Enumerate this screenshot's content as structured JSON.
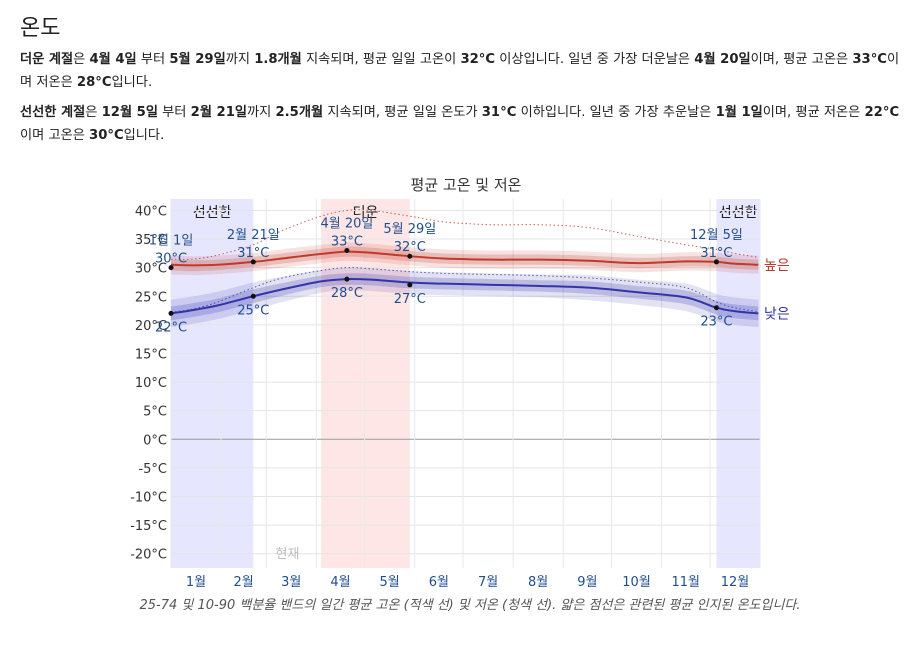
{
  "section": {
    "title": "온도",
    "hot_paragraph": {
      "season_label": "더운 계절",
      "t1": "은 ",
      "start": "4월 4일",
      "t2": " 부터 ",
      "end": "5월 29일",
      "t3": "까지 ",
      "duration": "1.8개월",
      "t4": " 지속되며, 평균 일일 고온이 ",
      "threshold": "32°C",
      "t5": " 이상입니다. 일년 중 가장 더운날은 ",
      "extreme_day": "4월 20일",
      "t6": "이며, 평균 고온은 ",
      "avg_high": "33°C",
      "t7": "이며 저온은 ",
      "avg_low": "28°C",
      "t8": "입니다."
    },
    "cold_paragraph": {
      "season_label": "선선한 계절",
      "t1": "은 ",
      "start": "12월 5일",
      "t2": " 부터 ",
      "end": "2월 21일",
      "t3": "까지 ",
      "duration": "2.5개월",
      "t4": " 지속되며, 평균 일일 온도가 ",
      "threshold": "31°C",
      "t5": " 이하입니다. 일년 중 가장 추운날은 ",
      "extreme_day": "1월 1일",
      "t6": "이며, 평균 저온은 ",
      "avg_low": "22°C",
      "t7": "이며 고온은 ",
      "avg_high": "30°C",
      "t8": "입니다."
    },
    "caption": "25-74 및 10-90 백분율 밴드의 일간 평균 고온 (적색 선) 및 저온 (청색 선). 얇은 점선은 관련된 평균 인지된 온도입니다."
  },
  "colors": {
    "high_line": "#c0392b",
    "low_line": "#3333aa",
    "hot_band": "#ffe6e6",
    "cold_band": "#e6e6ff",
    "label_blue": "#1f4e8c"
  },
  "chart_data": {
    "type": "line",
    "title": "평균 고온 및 저온",
    "ylim": [
      -22.5,
      42
    ],
    "yticks": [
      40,
      35,
      30,
      25,
      20,
      15,
      10,
      5,
      0,
      -5,
      -10,
      -15,
      -20
    ],
    "ytick_labels": [
      "40°C",
      "35°C",
      "30°C",
      "25°C",
      "20°C",
      "15°C",
      "10°C",
      "5°C",
      "0°C",
      "-5°C",
      "-10°C",
      "-15°C",
      "-20°C"
    ],
    "month_labels": [
      "1월",
      "2월",
      "3월",
      "4월",
      "5월",
      "6월",
      "7월",
      "8월",
      "9월",
      "10월",
      "11월",
      "12월"
    ],
    "grid": true,
    "today_label": "현재",
    "today_day": 67,
    "seasons": [
      {
        "label": "선선한",
        "start_day": 1,
        "end_day": 52,
        "kind": "cold"
      },
      {
        "label": "더운",
        "start_day": 94,
        "end_day": 149,
        "kind": "hot"
      },
      {
        "label": "선선한",
        "start_day": 339,
        "end_day": 366,
        "kind": "cold"
      }
    ],
    "series": [
      {
        "name": "높은",
        "kind": "high",
        "x": [
          1,
          15,
          30,
          52,
          70,
          94,
          110,
          125,
          149,
          170,
          200,
          230,
          260,
          290,
          320,
          339,
          350,
          365
        ],
        "values": [
          30.5,
          30.4,
          30.5,
          31,
          31.6,
          32.4,
          32.8,
          32.6,
          32,
          31.6,
          31.4,
          31.4,
          31.2,
          30.8,
          31.1,
          31,
          30.7,
          30.5
        ],
        "p25": [
          29.5,
          29.4,
          29.6,
          30.1,
          30.7,
          31.5,
          31.9,
          31.7,
          31.1,
          30.7,
          30.5,
          30.5,
          30.3,
          29.9,
          30.2,
          30.1,
          29.8,
          29.6
        ],
        "p75": [
          31.4,
          31.3,
          31.4,
          31.9,
          32.5,
          33.3,
          33.7,
          33.5,
          32.9,
          32.5,
          32.3,
          32.3,
          32.1,
          31.7,
          32,
          31.9,
          31.6,
          31.4
        ],
        "p10": [
          28.8,
          28.7,
          28.9,
          29.4,
          30,
          30.8,
          31.2,
          31,
          30.4,
          30,
          29.8,
          29.8,
          29.6,
          29.2,
          29.5,
          29.4,
          29.1,
          28.9
        ],
        "p90": [
          32.1,
          32,
          32.1,
          32.6,
          33.2,
          34,
          34.4,
          34.2,
          33.6,
          33.2,
          33,
          33,
          32.8,
          32.4,
          32.7,
          32.6,
          32.3,
          32.1
        ],
        "feels": [
          31.5,
          31.5,
          32.2,
          34,
          36.5,
          39,
          40,
          40,
          39,
          38,
          37.5,
          37.5,
          37,
          35.5,
          34,
          33.2,
          32.5,
          31.8
        ]
      },
      {
        "name": "낮은",
        "kind": "low",
        "x": [
          1,
          15,
          30,
          52,
          70,
          94,
          110,
          125,
          149,
          170,
          200,
          230,
          260,
          290,
          320,
          339,
          350,
          365
        ],
        "values": [
          22,
          22.6,
          23.4,
          25,
          26.2,
          27.6,
          28,
          27.9,
          27.4,
          27.2,
          27,
          26.8,
          26.5,
          25.7,
          24.8,
          23,
          22.4,
          22
        ],
        "p25": [
          20.8,
          21.4,
          22.2,
          23.8,
          25.1,
          26.6,
          27,
          26.9,
          26.4,
          26.2,
          26,
          25.8,
          25.4,
          24.6,
          23.6,
          21.8,
          21.2,
          20.8
        ],
        "p75": [
          23.2,
          23.8,
          24.6,
          26.2,
          27.3,
          28.6,
          29,
          28.9,
          28.4,
          28.2,
          28,
          27.8,
          27.6,
          26.8,
          26,
          24.2,
          23.6,
          23.2
        ],
        "p10": [
          19.6,
          20.2,
          21,
          22.6,
          24,
          25.6,
          26,
          25.9,
          25.4,
          25.2,
          25,
          24.8,
          24.3,
          23.5,
          22.4,
          20.6,
          20,
          19.6
        ],
        "p90": [
          24.4,
          25,
          25.8,
          27.4,
          28.4,
          29.6,
          30,
          29.9,
          29.4,
          29.2,
          29,
          28.8,
          28.7,
          27.9,
          27.2,
          25.4,
          24.8,
          24.4
        ],
        "feels": [
          22.2,
          22.8,
          24,
          26.5,
          28.2,
          29.5,
          30,
          29.8,
          29.3,
          29,
          28.8,
          28.6,
          28.2,
          27.5,
          26.5,
          24,
          23,
          22.3
        ]
      }
    ],
    "annotations": [
      {
        "day": 1,
        "date": "1월 1일",
        "value": 30,
        "value_label": "30°C",
        "series": "high"
      },
      {
        "day": 1,
        "value": 22,
        "value_label": "22°C",
        "series": "low"
      },
      {
        "day": 52,
        "date": "2월 21일",
        "value": 31,
        "value_label": "31°C",
        "series": "high"
      },
      {
        "day": 52,
        "value": 25,
        "value_label": "25°C",
        "series": "low"
      },
      {
        "day": 110,
        "date": "4월 20일",
        "value": 33,
        "value_label": "33°C",
        "series": "high"
      },
      {
        "day": 110,
        "value": 28,
        "value_label": "28°C",
        "series": "low"
      },
      {
        "day": 149,
        "date": "5월 29일",
        "value": 32,
        "value_label": "32°C",
        "series": "high"
      },
      {
        "day": 149,
        "value": 27,
        "value_label": "27°C",
        "series": "low"
      },
      {
        "day": 339,
        "date": "12월 5일",
        "value": 31,
        "value_label": "31°C",
        "series": "high"
      },
      {
        "day": 339,
        "value": 23,
        "value_label": "23°C",
        "series": "low"
      }
    ]
  }
}
